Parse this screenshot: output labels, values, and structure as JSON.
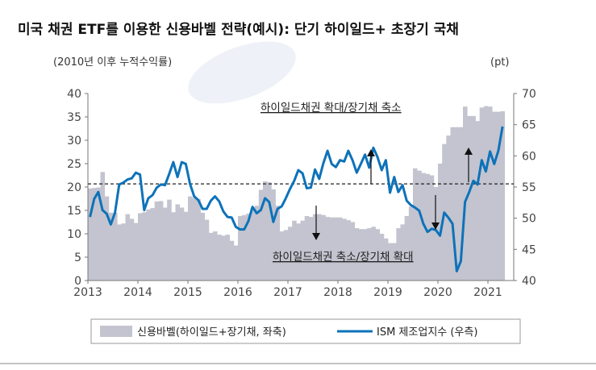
{
  "chart_data": {
    "type": "bar+line",
    "title": "미국 채권 ETF를 이용한 신용바벨 전략(예시): 단기 하이일드+ 초장기 국채",
    "left_axis_label": "(2010년 이후 누적수익률)",
    "right_axis_label": "(pt)",
    "x_start": "2013-01",
    "x_ticks": [
      "2013",
      "2014",
      "2015",
      "2016",
      "2017",
      "2018",
      "2019",
      "2020",
      "2021"
    ],
    "left_ylim": [
      0,
      40
    ],
    "left_ticks": [
      "0",
      "5",
      "10",
      "15",
      "20",
      "25",
      "30",
      "35",
      "40"
    ],
    "right_ylim": [
      40,
      70
    ],
    "right_ticks": [
      "40",
      "45",
      "50",
      "55",
      "60",
      "65",
      "70"
    ],
    "reference_line_right": 55.5,
    "annotations": {
      "upper": "하이일드채권 확대/장기채 축소",
      "lower": "하이일드채권 축소/장기채 확대"
    },
    "series": [
      {
        "name": "신용바벨(하이일드+장기채, 좌축)",
        "type": "bar",
        "axis": "left",
        "color": "#c3c4cf",
        "values": [
          19.7,
          19.8,
          19.9,
          23.2,
          18.0,
          14.5,
          14.5,
          12.0,
          12.2,
          14.2,
          13.2,
          12.3,
          14.4,
          14.6,
          15.2,
          15.5,
          16.9,
          17.0,
          15.6,
          17.3,
          14.6,
          16.3,
          15.6,
          14.7,
          18.0,
          17.7,
          17.4,
          14.5,
          13.0,
          10.2,
          10.5,
          9.8,
          9.6,
          9.8,
          8.5,
          7.5,
          13.8,
          14.0,
          14.3,
          15.5,
          16.0,
          19.4,
          21.2,
          21.0,
          19.5,
          16.0,
          10.5,
          10.8,
          11.5,
          12.8,
          12.2,
          12.8,
          13.8,
          13.6,
          14.2,
          14.2,
          14.0,
          13.6,
          13.5,
          13.5,
          13.5,
          13.2,
          12.9,
          12.5,
          11.2,
          11.0,
          11.0,
          11.2,
          11.5,
          11.0,
          10.0,
          9.0,
          8.0,
          8.0,
          11.2,
          12.0,
          13.8,
          15.8,
          24.0,
          23.5,
          23.0,
          22.8,
          22.5,
          20.0,
          25.0,
          29.2,
          31.0,
          32.8,
          32.8,
          32.8,
          37.2,
          35.2,
          35.2,
          34.1,
          37.0,
          37.3,
          37.2,
          36.1,
          36.1,
          36.2
        ]
      },
      {
        "name": "ISM 제조업지수 (우측)",
        "type": "line",
        "axis": "right",
        "color": "#0d72b9",
        "values": [
          50.2,
          53.1,
          54.2,
          51.3,
          50.7,
          49.0,
          50.9,
          55.4,
          55.7,
          56.2,
          56.4,
          57.3,
          57.0,
          51.3,
          53.2,
          53.7,
          54.9,
          55.4,
          55.3,
          57.1,
          59.0,
          56.6,
          59.0,
          58.7,
          55.5,
          53.5,
          52.9,
          51.5,
          51.5,
          52.8,
          53.5,
          52.7,
          51.1,
          50.2,
          50.1,
          48.6,
          48.2,
          48.2,
          49.5,
          51.8,
          50.8,
          51.3,
          53.2,
          52.6,
          49.4,
          51.5,
          51.9,
          53.2,
          54.7,
          56.0,
          57.7,
          57.2,
          54.8,
          54.9,
          57.8,
          56.3,
          58.8,
          60.8,
          58.7,
          58.2,
          59.3,
          59.1,
          60.8,
          59.3,
          57.3,
          58.7,
          60.2,
          58.1,
          61.3,
          59.8,
          57.7,
          59.3,
          54.1,
          56.6,
          54.2,
          55.3,
          52.8,
          52.1,
          51.7,
          51.2,
          49.1,
          47.8,
          48.3,
          48.1,
          47.2,
          50.9,
          50.1,
          49.1,
          41.5,
          43.1,
          52.6,
          54.2,
          56.0,
          55.4,
          59.3,
          57.5,
          60.7,
          58.7,
          60.8,
          64.7
        ]
      }
    ],
    "legend_position": "bottom",
    "grid": false
  }
}
